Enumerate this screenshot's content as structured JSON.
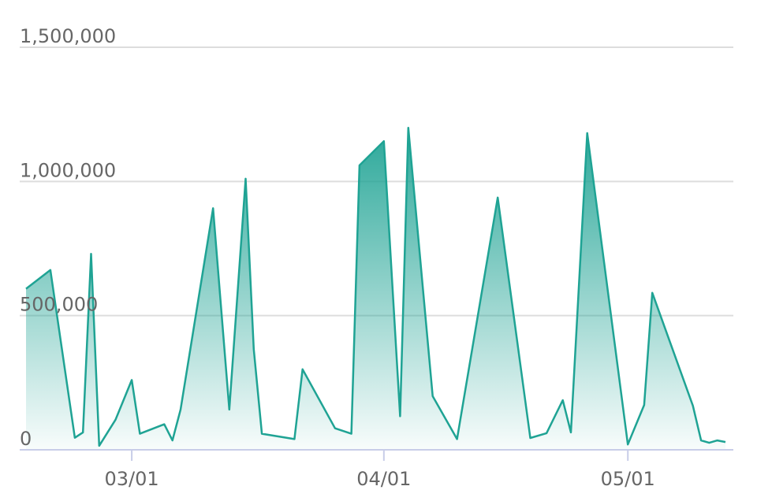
{
  "chart_data": {
    "type": "area",
    "color": "#1fa394",
    "grid": true,
    "x": [
      "02/16",
      "02/19",
      "02/22",
      "02/23",
      "02/24",
      "02/25",
      "02/27",
      "03/01",
      "03/02",
      "03/05",
      "03/06",
      "03/07",
      "03/11",
      "03/13",
      "03/15",
      "03/16",
      "03/17",
      "03/21",
      "03/22",
      "03/26",
      "03/28",
      "03/29",
      "04/01",
      "04/03",
      "04/04",
      "04/07",
      "04/10",
      "04/15",
      "04/19",
      "04/21",
      "04/23",
      "04/24",
      "04/26",
      "05/01",
      "05/03",
      "05/04",
      "05/09",
      "05/10",
      "05/11",
      "05/12",
      "05/13"
    ],
    "values": [
      600000,
      670000,
      45000,
      65000,
      730000,
      15000,
      112000,
      260000,
      60000,
      95000,
      35000,
      150000,
      900000,
      150000,
      1010000,
      375000,
      60000,
      40000,
      300000,
      80000,
      60000,
      1060000,
      1150000,
      125000,
      1200000,
      200000,
      40000,
      940000,
      44000,
      62000,
      185000,
      65000,
      1180000,
      20000,
      167000,
      585000,
      164000,
      35000,
      26000,
      35000,
      29000
    ],
    "xlim": [
      "02/16",
      "05/13"
    ],
    "xticks": [
      "03/01",
      "04/01",
      "05/01"
    ],
    "ylim": [
      0,
      1500000
    ],
    "yticks": [
      0,
      {
        "value": 500000,
        "label": "500,000"
      },
      {
        "value": 1000000,
        "label": "1,000,000"
      },
      {
        "value": 1500000,
        "label": "1,500,000"
      }
    ]
  }
}
